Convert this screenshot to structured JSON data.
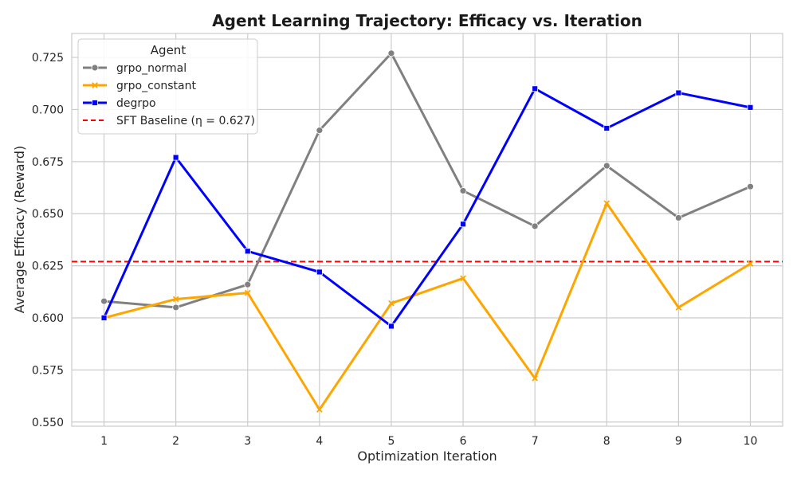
{
  "chart_data": {
    "type": "line",
    "title": "Agent Learning Trajectory: Efficacy vs. Iteration",
    "xlabel": "Optimization Iteration",
    "ylabel": "Average Efficacy (Reward)",
    "x": [
      1,
      2,
      3,
      4,
      5,
      6,
      7,
      8,
      9,
      10
    ],
    "xlim": [
      0.55,
      10.45
    ],
    "ylim": [
      0.548,
      0.7365
    ],
    "y_ticks": [
      0.55,
      0.575,
      0.6,
      0.625,
      0.65,
      0.675,
      0.7,
      0.725
    ],
    "y_tick_labels": [
      "0.550",
      "0.575",
      "0.600",
      "0.625",
      "0.650",
      "0.675",
      "0.700",
      "0.725"
    ],
    "grid": true,
    "legend": {
      "title": "Agent",
      "placement": "top-left"
    },
    "series": [
      {
        "name": "grpo_normal",
        "color": "#808080",
        "marker": "circle",
        "values": [
          0.608,
          0.605,
          0.616,
          0.69,
          0.727,
          0.661,
          0.644,
          0.673,
          0.648,
          0.663
        ]
      },
      {
        "name": "grpo_constant",
        "color": "#ffa500",
        "marker": "x",
        "values": [
          0.6,
          0.609,
          0.612,
          0.556,
          0.607,
          0.619,
          0.571,
          0.655,
          0.605,
          0.626
        ]
      },
      {
        "name": "degrpo",
        "color": "#0000ff",
        "marker": "square",
        "values": [
          0.6,
          0.677,
          0.632,
          0.622,
          0.596,
          0.645,
          0.71,
          0.691,
          0.708,
          0.701
        ]
      }
    ],
    "baseline": {
      "label": "SFT Baseline (η = 0.627)",
      "value": 0.627,
      "color": "#ff0000",
      "style": "dashed"
    }
  }
}
